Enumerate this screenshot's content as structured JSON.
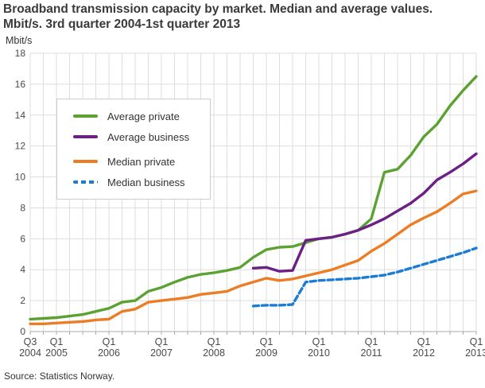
{
  "header": {
    "title_line1": "Broadband transmission capacity by market. Median and average values.",
    "title_line2": "Mbit/s. 3rd quarter 2004-1st quarter 2013"
  },
  "y_axis_unit": "Mbit/s",
  "source": "Source: Statistics Norway.",
  "colors": {
    "grid": "#dedede",
    "axis": "#ababab",
    "tick_text": "#4a4a4a",
    "green": "#5ca233",
    "purple": "#6c1f84",
    "orange": "#ec7d24",
    "blue": "#1b7cd6"
  },
  "chart_data": {
    "type": "line",
    "title": "Broadband transmission capacity by market. Median and average values. Mbit/s. 3rd quarter 2004-1st quarter 2013",
    "ylabel": "Mbit/s",
    "ylim": [
      0,
      18
    ],
    "y_ticks": [
      0,
      2,
      4,
      6,
      8,
      10,
      12,
      14,
      16,
      18
    ],
    "grid": true,
    "legend_position": "top-left",
    "x_quarters": [
      "Q3 2004",
      "Q4 2004",
      "Q1 2005",
      "Q2 2005",
      "Q3 2005",
      "Q4 2005",
      "Q1 2006",
      "Q2 2006",
      "Q3 2006",
      "Q4 2006",
      "Q1 2007",
      "Q2 2007",
      "Q3 2007",
      "Q4 2007",
      "Q1 2008",
      "Q2 2008",
      "Q3 2008",
      "Q4 2008",
      "Q1 2009",
      "Q2 2009",
      "Q3 2009",
      "Q4 2009",
      "Q1 2010",
      "Q2 2010",
      "Q3 2010",
      "Q4 2010",
      "Q1 2011",
      "Q2 2011",
      "Q3 2011",
      "Q4 2011",
      "Q1 2012",
      "Q2 2012",
      "Q3 2012",
      "Q4 2012",
      "Q1 2013"
    ],
    "x_tick_labels": [
      {
        "top": "Q3",
        "bottom": "2004",
        "index": 0
      },
      {
        "top": "Q1",
        "bottom": "2005",
        "index": 2
      },
      {
        "top": "Q1",
        "bottom": "2006",
        "index": 6
      },
      {
        "top": "Q1",
        "bottom": "2007",
        "index": 10
      },
      {
        "top": "Q1",
        "bottom": "2008",
        "index": 14
      },
      {
        "top": "Q1",
        "bottom": "2009",
        "index": 18
      },
      {
        "top": "Q1",
        "bottom": "2010",
        "index": 22
      },
      {
        "top": "Q1",
        "bottom": "2011",
        "index": 26
      },
      {
        "top": "Q1",
        "bottom": "2012",
        "index": 30
      },
      {
        "top": "Q1",
        "bottom": "2013",
        "index": 34
      }
    ],
    "series": [
      {
        "name": "Average private",
        "color": "#5ca233",
        "dash": null,
        "values": [
          0.8,
          0.85,
          0.9,
          1.0,
          1.1,
          1.3,
          1.5,
          1.9,
          2.0,
          2.6,
          2.85,
          3.2,
          3.5,
          3.7,
          3.8,
          3.95,
          4.15,
          4.8,
          5.3,
          5.45,
          5.5,
          5.75,
          6.0,
          6.1,
          6.3,
          6.55,
          7.3,
          10.3,
          10.5,
          11.4,
          12.6,
          13.4,
          14.6,
          15.6,
          16.5
        ]
      },
      {
        "name": "Average business",
        "color": "#6c1f84",
        "dash": null,
        "values": [
          null,
          null,
          null,
          null,
          null,
          null,
          null,
          null,
          null,
          null,
          null,
          null,
          null,
          null,
          null,
          null,
          null,
          4.1,
          4.15,
          3.9,
          3.95,
          5.9,
          6.0,
          6.1,
          6.3,
          6.55,
          6.9,
          7.3,
          7.8,
          8.3,
          8.95,
          9.8,
          10.3,
          10.85,
          11.5
        ]
      },
      {
        "name": "Median private",
        "color": "#ec7d24",
        "dash": null,
        "values": [
          0.5,
          0.5,
          0.55,
          0.6,
          0.65,
          0.75,
          0.8,
          1.3,
          1.45,
          1.9,
          2.0,
          2.1,
          2.2,
          2.4,
          2.5,
          2.6,
          2.95,
          3.2,
          3.45,
          3.3,
          3.4,
          3.6,
          3.8,
          4.0,
          4.3,
          4.6,
          5.2,
          5.7,
          6.3,
          6.9,
          7.35,
          7.75,
          8.3,
          8.9,
          9.1
        ]
      },
      {
        "name": "Median business",
        "color": "#1b7cd6",
        "dash": "7 4",
        "values": [
          null,
          null,
          null,
          null,
          null,
          null,
          null,
          null,
          null,
          null,
          null,
          null,
          null,
          null,
          null,
          null,
          null,
          1.65,
          1.7,
          1.7,
          1.75,
          3.2,
          3.3,
          3.35,
          3.4,
          3.45,
          3.55,
          3.65,
          3.85,
          4.1,
          4.35,
          4.6,
          4.85,
          5.1,
          5.4
        ]
      }
    ]
  }
}
